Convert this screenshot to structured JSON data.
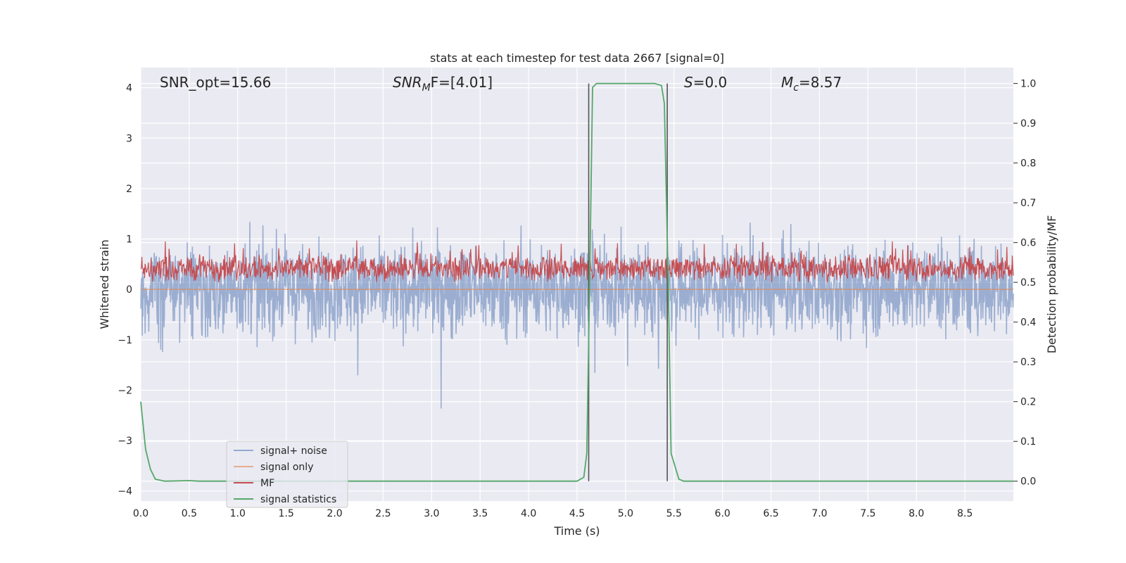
{
  "chart_data": {
    "type": "line",
    "title": "stats at each timestep for test data 2667 [signal=0]",
    "xlabel": "Time (s)",
    "ylabel": "Whitened strain",
    "y2label": "Detection probability/MF",
    "xlim": [
      0.0,
      9.0
    ],
    "ylim": [
      -4.2,
      4.4
    ],
    "y2lim": [
      -0.05,
      1.04
    ],
    "xticks": [
      "0.0",
      "0.5",
      "1.0",
      "1.5",
      "2.0",
      "2.5",
      "3.0",
      "3.5",
      "4.0",
      "4.5",
      "5.0",
      "5.5",
      "6.0",
      "6.5",
      "7.0",
      "7.5",
      "8.0",
      "8.5"
    ],
    "yticks": [
      "4",
      "3",
      "2",
      "1",
      "0",
      "−1",
      "−2",
      "−3",
      "−4"
    ],
    "y2ticks": [
      "1.0",
      "0.9",
      "0.8",
      "0.7",
      "0.6",
      "0.5",
      "0.4",
      "0.3",
      "0.2",
      "0.1",
      "0.0"
    ],
    "grid": true,
    "legend_position": "lower-left",
    "annotations": {
      "snr_opt": "SNR_opt=15.66",
      "snr_mf_sym": "SNR",
      "snr_mf_sub": "M",
      "snr_mf_rest": "F=[4.01]",
      "s_sym": "S",
      "s_rest": "=0.0",
      "mc_sym": "M",
      "mc_sub": "c",
      "mc_rest": "=8.57"
    },
    "vertical_lines_x": [
      4.62,
      5.43
    ],
    "series": [
      {
        "name": "signal+ noise",
        "color": "#4c72b0",
        "axis": "left",
        "kind": "noise",
        "envelope": [
          -3.7,
          4.0
        ]
      },
      {
        "name": "signal only",
        "color": "#dd8452",
        "axis": "left",
        "kind": "flat",
        "value": 0.0
      },
      {
        "name": "MF",
        "color": "#c44e52",
        "axis": "right",
        "kind": "noise",
        "envelope": [
          0.5,
          0.64
        ]
      },
      {
        "name": "signal statistics",
        "color": "#55a868",
        "axis": "right",
        "kind": "curve",
        "x": [
          0.0,
          0.05,
          0.1,
          0.15,
          0.25,
          0.5,
          0.6,
          1.0,
          4.5,
          4.57,
          4.6,
          4.63,
          4.66,
          4.7,
          5.0,
          5.3,
          5.37,
          5.4,
          5.44,
          5.47,
          5.55,
          5.6,
          6.0,
          9.0
        ],
        "y": [
          0.2,
          0.08,
          0.03,
          0.005,
          0.0,
          0.0015,
          0.0,
          0.0,
          0.0,
          0.01,
          0.07,
          0.5,
          0.99,
          1.0,
          1.0,
          1.0,
          0.995,
          0.95,
          0.5,
          0.07,
          0.005,
          0.0,
          0.0,
          0.0
        ]
      }
    ]
  }
}
